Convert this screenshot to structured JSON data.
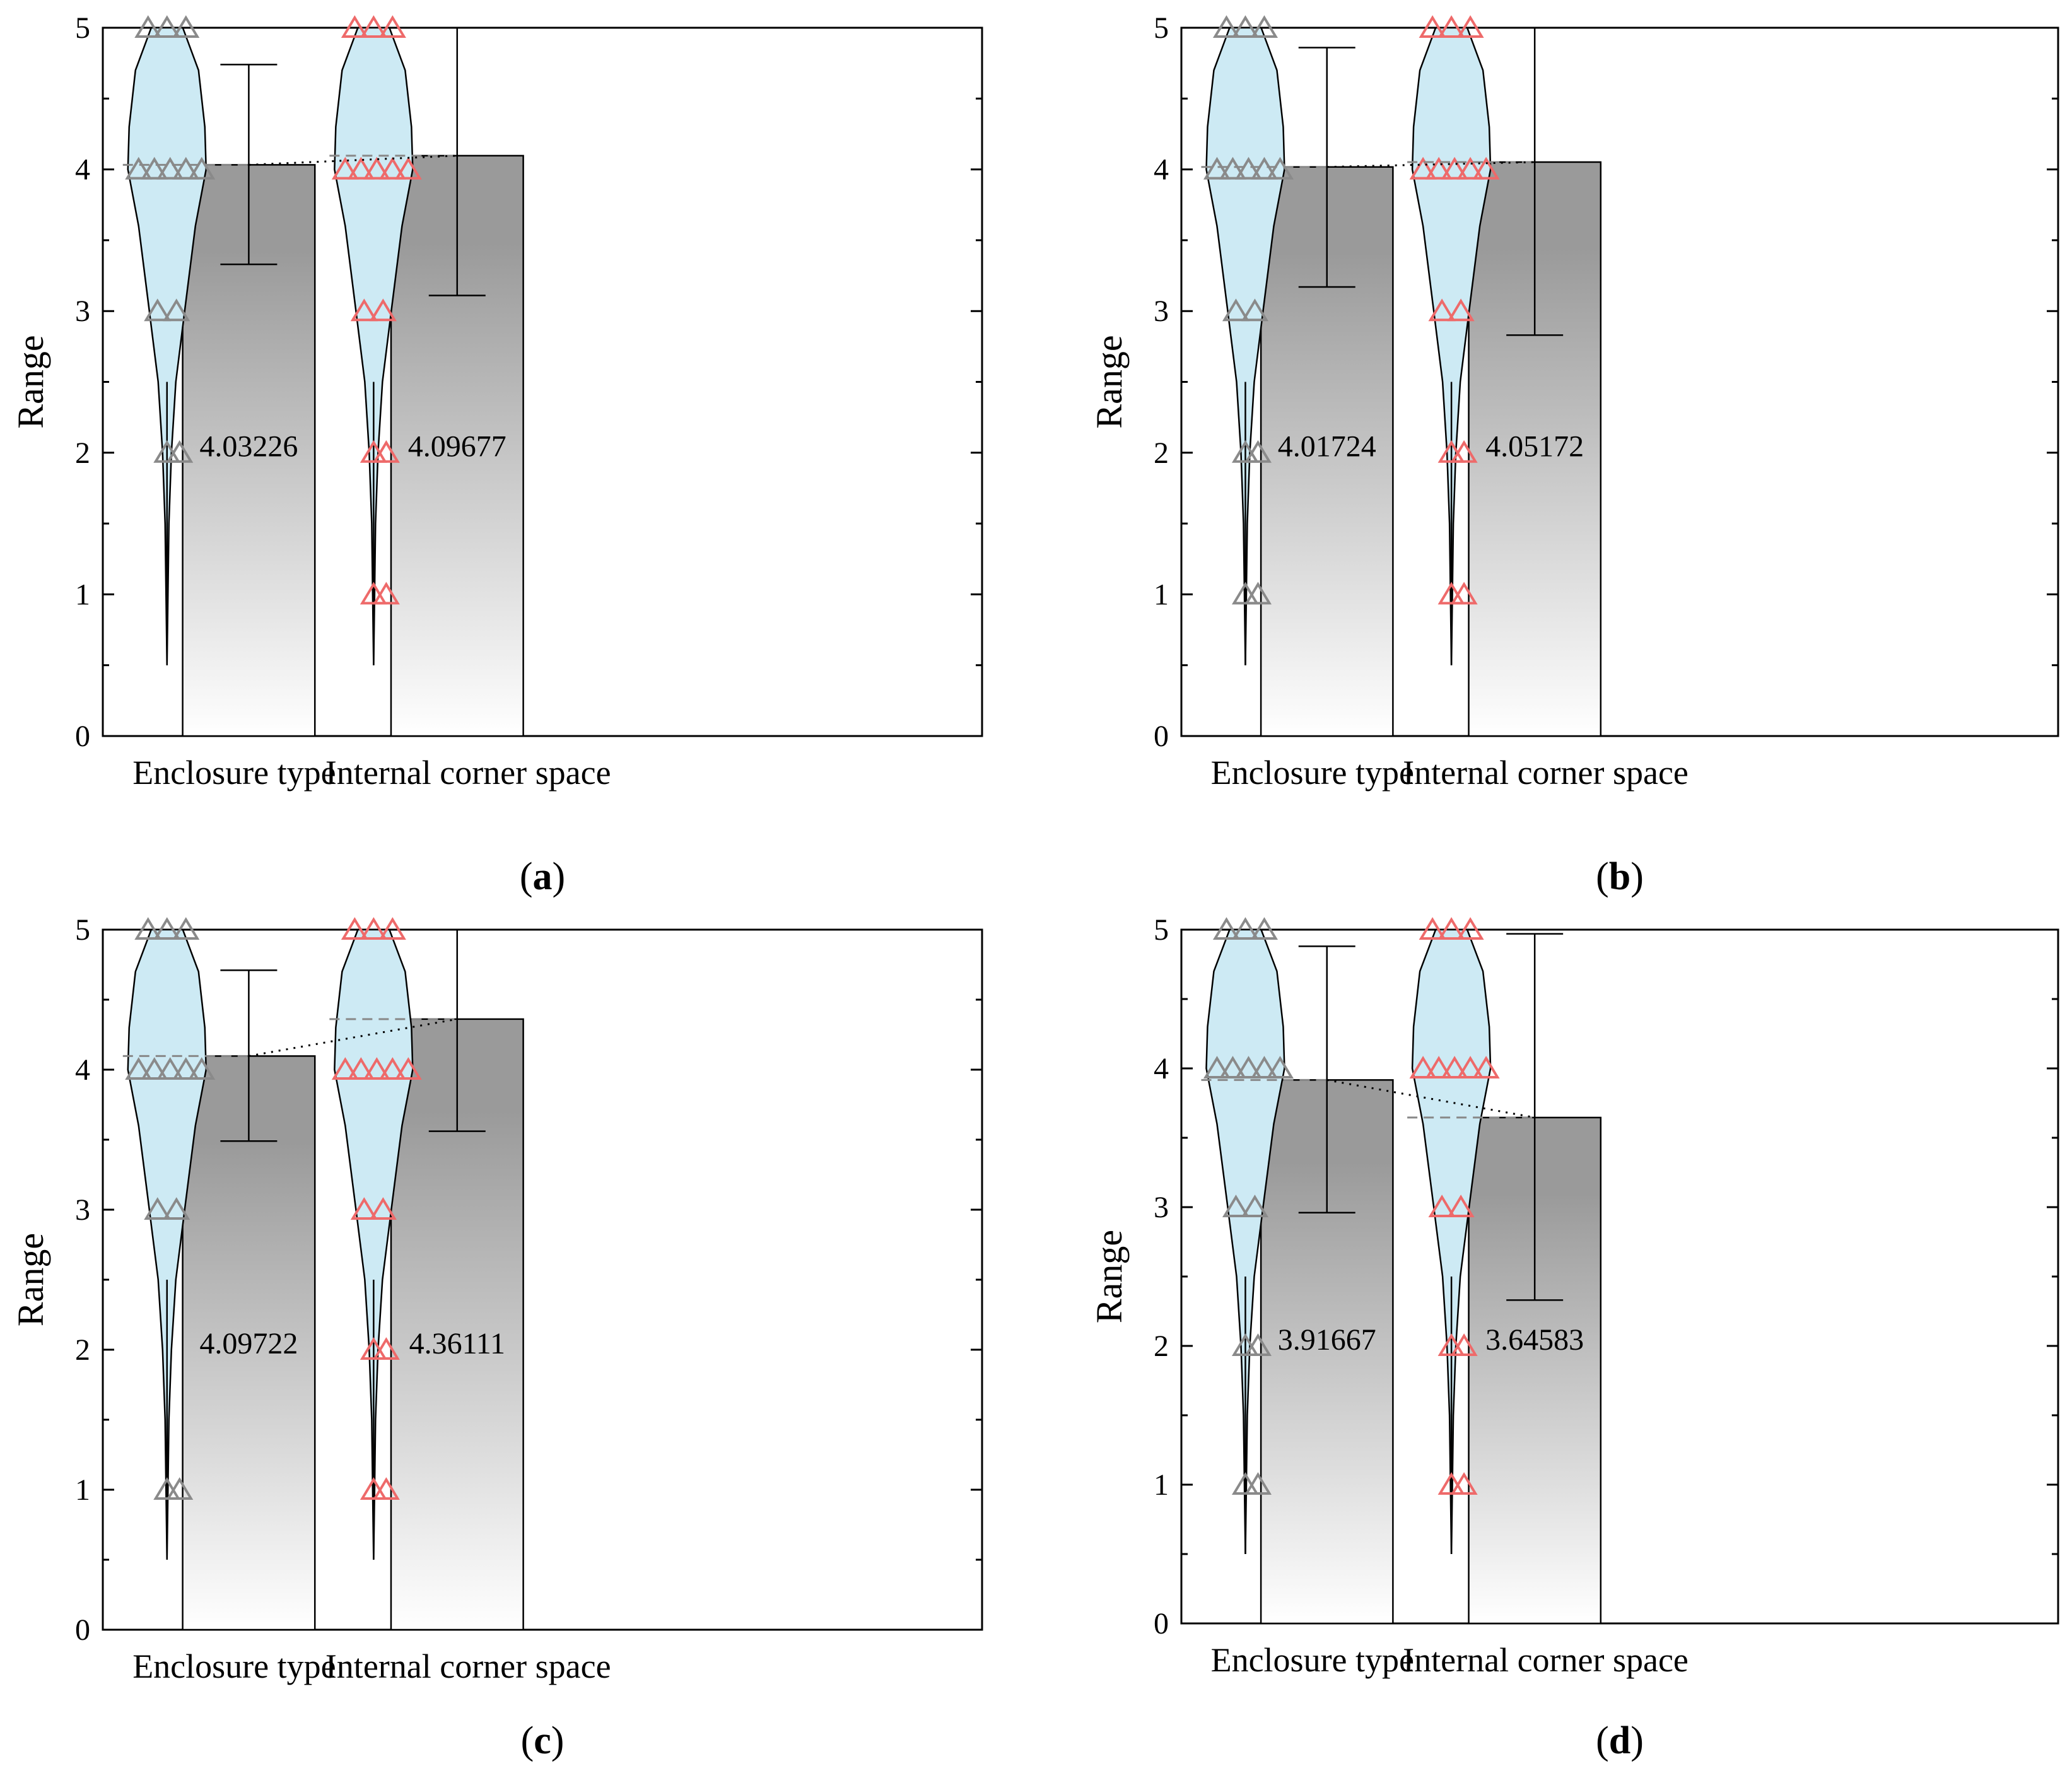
{
  "colors": {
    "violin_fill": "#cdeaf4",
    "gray_marker": "#8a8a8a",
    "red_marker": "#ee6a6a",
    "bar_top": "#9a9a9a",
    "bar_bottom": "#ffffff"
  },
  "chart_data": [
    {
      "type": "bar",
      "panel": "a",
      "categories": [
        "Enclosure type",
        "Internal corner space"
      ],
      "values": [
        4.03226,
        4.09677
      ],
      "value_labels": [
        "4.03226",
        "4.09677"
      ],
      "error_low": [
        3.33,
        3.11
      ],
      "error_high": [
        4.74,
        5.0
      ],
      "ylabel": "Range",
      "ylim": [
        0,
        5
      ],
      "yticks": [
        "0",
        "1",
        "2",
        "3",
        "4",
        "5"
      ],
      "violins": [
        {
          "min": 0.5,
          "max": 5.0,
          "marker_values": [
            5,
            4,
            3,
            2
          ],
          "marker_color": "gray"
        },
        {
          "min": 0.5,
          "max": 5.0,
          "marker_values": [
            5,
            4,
            3,
            2,
            1
          ],
          "marker_color": "red"
        }
      ]
    },
    {
      "type": "bar",
      "panel": "b",
      "categories": [
        "Enclosure type",
        "Internal corner space"
      ],
      "values": [
        4.01724,
        4.05172
      ],
      "value_labels": [
        "4.01724",
        "4.05172"
      ],
      "error_low": [
        3.17,
        2.83
      ],
      "error_high": [
        4.86,
        5.0
      ],
      "ylabel": "Range",
      "ylim": [
        0,
        5
      ],
      "yticks": [
        "0",
        "1",
        "2",
        "3",
        "4",
        "5"
      ],
      "violins": [
        {
          "min": 0.5,
          "max": 5.0,
          "marker_values": [
            5,
            4,
            3,
            2,
            1
          ],
          "marker_color": "gray"
        },
        {
          "min": 0.5,
          "max": 5.0,
          "marker_values": [
            5,
            4,
            3,
            2,
            1
          ],
          "marker_color": "red"
        }
      ]
    },
    {
      "type": "bar",
      "panel": "c",
      "categories": [
        "Enclosure type",
        "Internal corner space"
      ],
      "values": [
        4.09722,
        4.36111
      ],
      "value_labels": [
        "4.09722",
        "4.36111"
      ],
      "error_low": [
        3.49,
        3.56
      ],
      "error_high": [
        4.71,
        5.0
      ],
      "ylabel": "Range",
      "ylim": [
        0,
        5
      ],
      "yticks": [
        "0",
        "1",
        "2",
        "3",
        "4",
        "5"
      ],
      "violins": [
        {
          "min": 0.5,
          "max": 5.0,
          "marker_values": [
            5,
            4,
            3,
            1
          ],
          "marker_color": "gray"
        },
        {
          "min": 0.5,
          "max": 5.0,
          "marker_values": [
            5,
            4,
            3,
            2,
            1
          ],
          "marker_color": "red"
        }
      ]
    },
    {
      "type": "bar",
      "panel": "d",
      "categories": [
        "Enclosure type",
        "Internal corner space"
      ],
      "values": [
        3.91667,
        3.64583
      ],
      "value_labels": [
        "3.91667",
        "3.64583"
      ],
      "error_low": [
        2.96,
        2.33
      ],
      "error_high": [
        4.88,
        4.97
      ],
      "ylabel": "Range",
      "ylim": [
        0,
        5
      ],
      "yticks": [
        "0",
        "1",
        "2",
        "3",
        "4",
        "5"
      ],
      "violins": [
        {
          "min": 0.5,
          "max": 5.0,
          "marker_values": [
            5,
            4,
            3,
            2,
            1
          ],
          "marker_color": "gray"
        },
        {
          "min": 0.5,
          "max": 5.0,
          "marker_values": [
            5,
            4,
            3,
            2,
            1
          ],
          "marker_color": "red"
        }
      ]
    }
  ]
}
